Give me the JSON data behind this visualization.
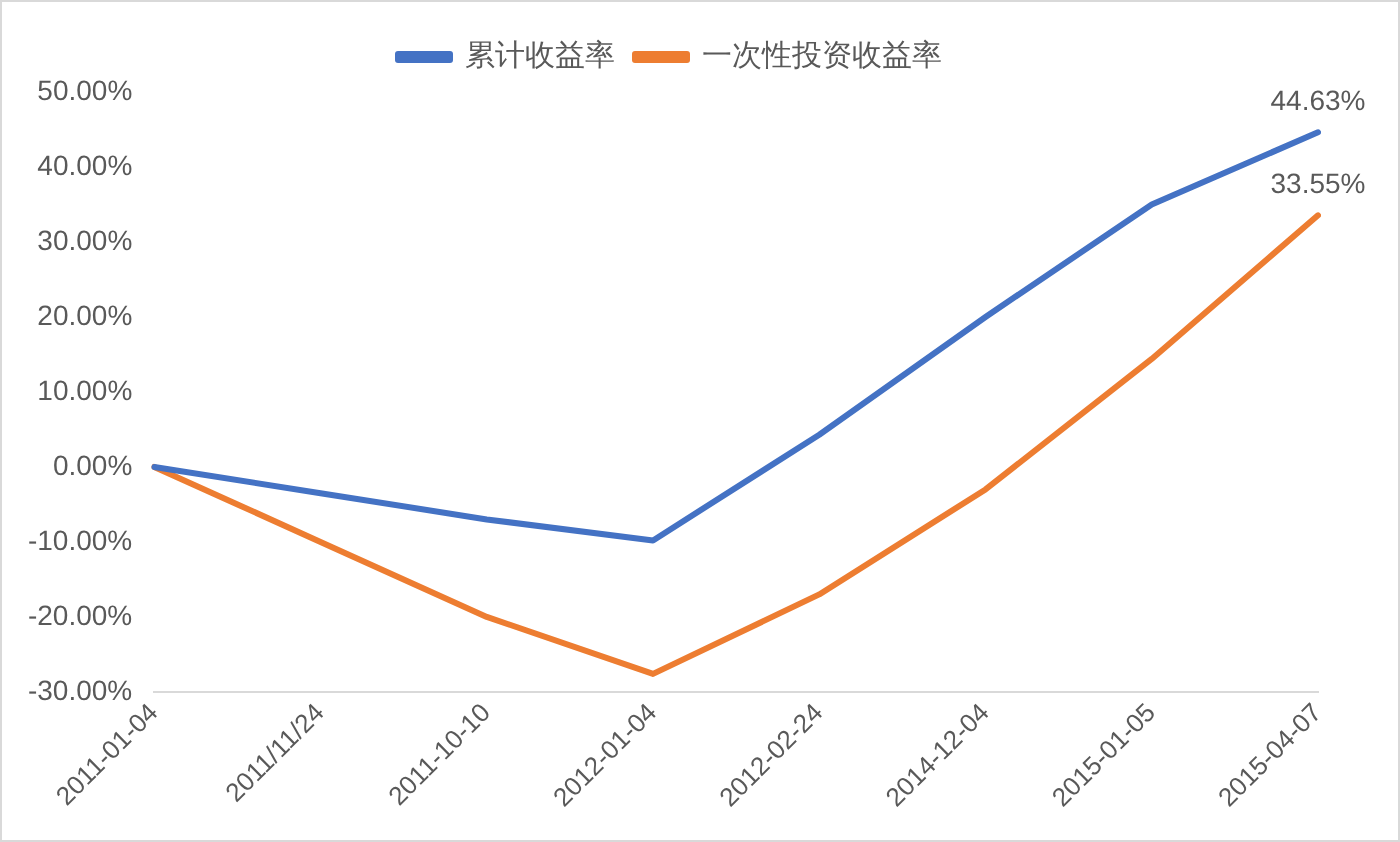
{
  "chart_data": {
    "type": "line",
    "categories": [
      "2011-01-04",
      "2011/11/24",
      "2011-10-10",
      "2012-01-04",
      "2012-02-24",
      "2014-12-04",
      "2015-01-05",
      "2015-04-07"
    ],
    "series": [
      {
        "name": "累计收益率",
        "color": "#4472c4",
        "values": [
          0,
          -3.5,
          -7,
          -9.8,
          4.3,
          20,
          35,
          44.63
        ],
        "value_labels": [
          null,
          null,
          null,
          null,
          null,
          null,
          null,
          "44.63%"
        ]
      },
      {
        "name": "一次性投资收益率",
        "color": "#ed7d31",
        "values": [
          0,
          -10,
          -20,
          -27.6,
          -17,
          -3,
          14.4,
          33.55
        ],
        "value_labels": [
          null,
          null,
          null,
          null,
          null,
          null,
          null,
          "33.55%"
        ]
      }
    ],
    "ylim": [
      -30,
      50
    ],
    "yticks": [
      {
        "value": -30,
        "label": "-30.00%"
      },
      {
        "value": -20,
        "label": "-20.00%"
      },
      {
        "value": -10,
        "label": "-10.00%"
      },
      {
        "value": 0,
        "label": "0.00%"
      },
      {
        "value": 10,
        "label": "10.00%"
      },
      {
        "value": 20,
        "label": "20.00%"
      },
      {
        "value": 30,
        "label": "30.00%"
      },
      {
        "value": 40,
        "label": "40.00%"
      },
      {
        "value": 50,
        "label": "50.00%"
      }
    ],
    "grid": false,
    "legend": "top",
    "marker": "none",
    "line_style": "solid"
  }
}
